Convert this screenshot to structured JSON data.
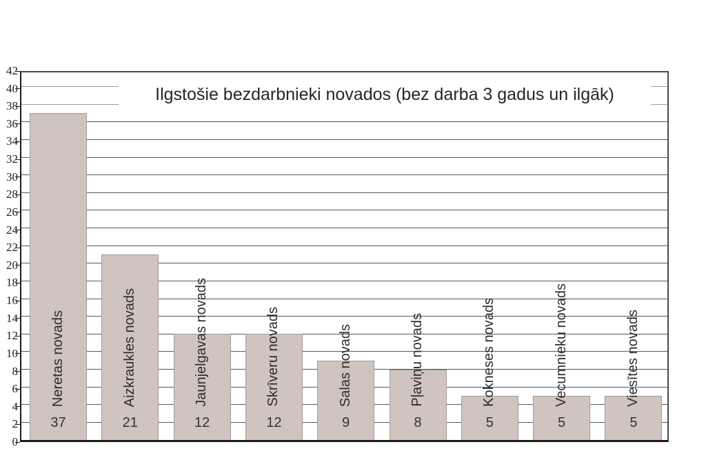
{
  "chart_data": {
    "type": "bar",
    "title": "Ilgstošie bezdarbnieki novados (bez darba 3 gadus un ilgāk)",
    "categories": [
      "Neretas novads",
      "Aizkraukles novads",
      "Jaunjelgavas novads",
      "Skrīveru novads",
      "Salas novads",
      "Pļaviņu novads",
      "Kokneses novads",
      "Vecumnieku novads",
      "Viesītes novads"
    ],
    "values": [
      37,
      21,
      12,
      12,
      9,
      8,
      5,
      5,
      5
    ],
    "value_labels": [
      "37",
      "21",
      "12",
      "12",
      "9",
      "8",
      "5",
      "5",
      "5"
    ],
    "xlabel": "",
    "ylabel": "",
    "ylim": [
      0,
      42
    ],
    "ytick_step": 2,
    "ytick_labels": [
      "0",
      "2",
      "4",
      "6",
      "8",
      "10",
      "12",
      "14",
      "16",
      "18",
      "20",
      "22",
      "24",
      "26",
      "28",
      "30",
      "32",
      "34",
      "36",
      "38",
      "40",
      "42"
    ],
    "grid": "horizontal",
    "legend": "none",
    "colors": {
      "bar_fill": "#cfc4bf",
      "bar_border": "#a79b95",
      "grid_dark": "#4a5b66",
      "grid_light": "#8ca1ad",
      "axis": "#1a1a1a",
      "text": "#2d2d2d"
    }
  }
}
